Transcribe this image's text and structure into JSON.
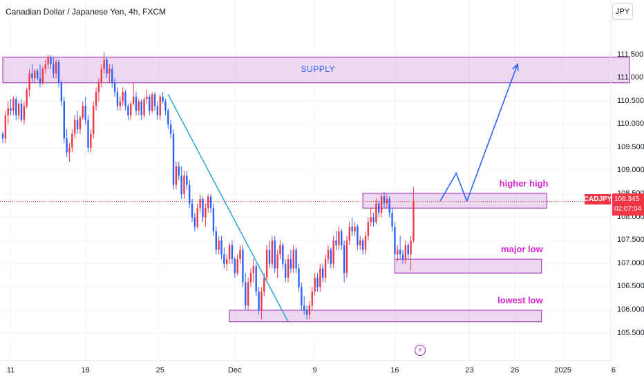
{
  "header": {
    "title": "Canadian Dollar / Japanese Yen, 4h, FXCM",
    "currency_button": "JPY"
  },
  "price_badge": {
    "symbol": "CADJPY",
    "price": "108.345",
    "countdown": "02:07:04"
  },
  "colors": {
    "up": "#f23645",
    "down": "#2962ff",
    "zone_fill": "#e1bee7",
    "zone_border": "#9c27b0",
    "label": "#d62ad0",
    "trend": "#2aa7d8",
    "projection": "#2962ff",
    "current_line": "#f23645"
  },
  "chart_data": {
    "type": "candlestick",
    "title": "Canadian Dollar / Japanese Yen, 4h, FXCM",
    "ylim": [
      105.3,
      111.85
    ],
    "y_ticks": [
      "111.500",
      "111.000",
      "110.500",
      "110.000",
      "109.500",
      "109.000",
      "108.500",
      "108.000",
      "107.500",
      "107.000",
      "106.500",
      "106.000",
      "105.500"
    ],
    "y_tick_values": [
      111.5,
      111.0,
      110.5,
      110.0,
      109.5,
      109.0,
      108.5,
      108.0,
      107.5,
      107.0,
      106.5,
      106.0,
      105.5
    ],
    "x_ticks": [
      "11",
      "18",
      "25",
      "Dec",
      "9",
      "16",
      "23",
      "26",
      "2025",
      "6"
    ],
    "x_tick_bar_index": [
      3,
      31,
      59,
      87,
      117,
      147,
      175,
      192,
      210,
      229
    ],
    "current_price": 108.345,
    "zones": [
      {
        "label": "SUPPLY",
        "bar_from": 0,
        "bar_to": 235,
        "low": 110.9,
        "high": 111.45
      },
      {
        "label": "higher high",
        "bar_from": 135,
        "bar_to": 204,
        "low": 108.2,
        "high": 108.52
      },
      {
        "label": "major low",
        "bar_from": 147,
        "bar_to": 202,
        "low": 106.8,
        "high": 107.1
      },
      {
        "label": "lowest low",
        "bar_from": 85,
        "bar_to": 202,
        "low": 105.75,
        "high": 106.0
      }
    ],
    "trendline": {
      "from": [
        62,
        110.65
      ],
      "to": [
        107,
        105.75
      ]
    },
    "projection": [
      [
        164,
        108.35
      ],
      [
        170,
        108.95
      ],
      [
        174,
        108.35
      ],
      [
        193,
        111.3
      ]
    ],
    "candles": [
      [
        109.8,
        109.85,
        109.6,
        109.7
      ],
      [
        109.7,
        110.3,
        109.6,
        110.2
      ],
      [
        110.2,
        110.5,
        110.0,
        110.35
      ],
      [
        110.35,
        110.55,
        110.2,
        110.3
      ],
      [
        110.3,
        110.6,
        110.2,
        110.55
      ],
      [
        110.55,
        110.6,
        110.1,
        110.2
      ],
      [
        110.2,
        110.5,
        110.1,
        110.45
      ],
      [
        110.45,
        110.55,
        110.05,
        110.1
      ],
      [
        110.1,
        110.5,
        110.0,
        110.4
      ],
      [
        110.4,
        110.8,
        110.35,
        110.75
      ],
      [
        110.75,
        111.2,
        110.6,
        111.1
      ],
      [
        111.1,
        111.3,
        110.9,
        111.0
      ],
      [
        111.0,
        111.2,
        110.9,
        111.15
      ],
      [
        111.15,
        111.2,
        110.95,
        111.0
      ],
      [
        111.0,
        111.3,
        110.8,
        110.9
      ],
      [
        110.9,
        111.25,
        110.85,
        111.2
      ],
      [
        111.2,
        111.4,
        111.1,
        111.3
      ],
      [
        111.3,
        111.5,
        111.2,
        111.45
      ],
      [
        111.45,
        111.5,
        111.2,
        111.3
      ],
      [
        111.3,
        111.45,
        111.0,
        111.1
      ],
      [
        111.1,
        111.4,
        111.0,
        111.35
      ],
      [
        111.35,
        111.4,
        110.8,
        110.9
      ],
      [
        110.9,
        110.95,
        110.4,
        110.5
      ],
      [
        110.5,
        110.6,
        109.6,
        109.7
      ],
      [
        109.7,
        109.9,
        109.3,
        109.4
      ],
      [
        109.4,
        109.6,
        109.2,
        109.5
      ],
      [
        109.5,
        109.9,
        109.4,
        109.8
      ],
      [
        109.8,
        110.2,
        109.7,
        110.1
      ],
      [
        110.1,
        110.3,
        109.8,
        109.9
      ],
      [
        109.9,
        110.2,
        109.8,
        110.15
      ],
      [
        110.15,
        110.5,
        110.1,
        110.4
      ],
      [
        110.4,
        110.6,
        110.0,
        110.1
      ],
      [
        110.1,
        110.2,
        109.4,
        109.5
      ],
      [
        109.5,
        109.9,
        109.4,
        109.8
      ],
      [
        109.8,
        110.5,
        109.7,
        110.4
      ],
      [
        110.4,
        110.8,
        110.3,
        110.7
      ],
      [
        110.7,
        111.0,
        110.5,
        110.9
      ],
      [
        110.9,
        111.3,
        110.8,
        111.2
      ],
      [
        111.2,
        111.55,
        111.1,
        111.4
      ],
      [
        111.4,
        111.45,
        111.0,
        111.1
      ],
      [
        111.1,
        111.3,
        110.9,
        111.2
      ],
      [
        111.2,
        111.3,
        110.8,
        110.9
      ],
      [
        110.9,
        111.0,
        110.6,
        110.7
      ],
      [
        110.7,
        110.8,
        110.3,
        110.4
      ],
      [
        110.4,
        110.6,
        110.3,
        110.5
      ],
      [
        110.5,
        110.8,
        110.4,
        110.7
      ],
      [
        110.7,
        110.75,
        110.3,
        110.4
      ],
      [
        110.4,
        110.45,
        110.1,
        110.2
      ],
      [
        110.2,
        110.5,
        110.1,
        110.45
      ],
      [
        110.45,
        110.9,
        110.4,
        110.6
      ],
      [
        110.6,
        110.7,
        110.2,
        110.3
      ],
      [
        110.3,
        110.55,
        110.2,
        110.5
      ],
      [
        110.5,
        110.55,
        110.1,
        110.2
      ],
      [
        110.2,
        110.6,
        110.15,
        110.55
      ],
      [
        110.55,
        110.75,
        110.45,
        110.6
      ],
      [
        110.6,
        110.65,
        110.2,
        110.3
      ],
      [
        110.3,
        110.7,
        110.25,
        110.65
      ],
      [
        110.65,
        110.7,
        110.3,
        110.4
      ],
      [
        110.4,
        110.5,
        110.1,
        110.2
      ],
      [
        110.2,
        110.65,
        110.1,
        110.6
      ],
      [
        110.6,
        110.7,
        110.45,
        110.5
      ],
      [
        110.5,
        110.55,
        110.2,
        110.3
      ],
      [
        110.3,
        110.35,
        109.9,
        110.0
      ],
      [
        110.0,
        110.1,
        109.7,
        109.8
      ],
      [
        109.8,
        109.9,
        108.6,
        108.7
      ],
      [
        108.7,
        109.2,
        108.6,
        109.1
      ],
      [
        109.1,
        109.2,
        108.8,
        108.9
      ],
      [
        108.9,
        109.1,
        108.4,
        108.5
      ],
      [
        108.5,
        109.0,
        108.4,
        108.9
      ],
      [
        108.9,
        109.0,
        108.6,
        108.7
      ],
      [
        108.7,
        108.8,
        108.2,
        108.3
      ],
      [
        108.3,
        108.4,
        107.9,
        108.0
      ],
      [
        108.0,
        108.1,
        107.7,
        107.8
      ],
      [
        107.8,
        108.3,
        107.75,
        108.2
      ],
      [
        108.2,
        108.5,
        108.1,
        108.4
      ],
      [
        108.4,
        108.45,
        107.9,
        108.0
      ],
      [
        108.0,
        108.3,
        107.8,
        108.2
      ],
      [
        108.2,
        108.5,
        108.1,
        108.45
      ],
      [
        108.45,
        108.5,
        108.1,
        108.2
      ],
      [
        108.2,
        108.3,
        107.6,
        107.7
      ],
      [
        107.7,
        107.8,
        107.2,
        107.3
      ],
      [
        107.3,
        107.6,
        107.2,
        107.5
      ],
      [
        107.5,
        107.6,
        107.1,
        107.2
      ],
      [
        107.2,
        107.35,
        106.9,
        107.0
      ],
      [
        107.0,
        107.2,
        106.85,
        107.1
      ],
      [
        107.1,
        107.45,
        107.0,
        107.4
      ],
      [
        107.4,
        107.5,
        107.0,
        107.1
      ],
      [
        107.1,
        107.15,
        106.7,
        106.8
      ],
      [
        106.8,
        107.2,
        106.75,
        107.1
      ],
      [
        107.1,
        107.4,
        107.0,
        107.3
      ],
      [
        107.3,
        107.4,
        106.5,
        106.6
      ],
      [
        106.6,
        106.8,
        106.0,
        106.1
      ],
      [
        106.1,
        106.7,
        106.0,
        106.6
      ],
      [
        106.6,
        106.9,
        106.5,
        106.8
      ],
      [
        106.8,
        107.1,
        106.6,
        106.95
      ],
      [
        106.95,
        107.0,
        106.3,
        106.4
      ],
      [
        106.4,
        106.5,
        105.9,
        106.0
      ],
      [
        106.0,
        106.5,
        105.8,
        106.4
      ],
      [
        106.4,
        106.8,
        106.3,
        106.7
      ],
      [
        106.7,
        107.4,
        106.6,
        107.3
      ],
      [
        107.3,
        107.5,
        106.9,
        107.0
      ],
      [
        107.0,
        107.6,
        106.9,
        107.5
      ],
      [
        107.5,
        107.6,
        106.8,
        106.9
      ],
      [
        106.9,
        107.3,
        106.7,
        107.2
      ],
      [
        107.2,
        107.5,
        107.1,
        107.4
      ],
      [
        107.4,
        107.45,
        106.9,
        107.0
      ],
      [
        107.0,
        107.1,
        106.6,
        106.7
      ],
      [
        106.7,
        107.2,
        106.6,
        107.1
      ],
      [
        107.1,
        107.3,
        106.8,
        106.9
      ],
      [
        106.9,
        107.4,
        106.8,
        107.3
      ],
      [
        107.3,
        107.35,
        106.8,
        106.9
      ],
      [
        106.9,
        107.0,
        106.4,
        106.5
      ],
      [
        106.5,
        106.6,
        106.0,
        106.1
      ],
      [
        106.1,
        106.3,
        105.9,
        106.0
      ],
      [
        106.0,
        106.1,
        105.8,
        105.9
      ],
      [
        105.9,
        106.2,
        105.8,
        106.1
      ],
      [
        106.1,
        106.5,
        106.0,
        106.4
      ],
      [
        106.4,
        106.8,
        106.3,
        106.7
      ],
      [
        106.7,
        106.8,
        106.4,
        106.5
      ],
      [
        106.5,
        107.0,
        106.4,
        106.9
      ],
      [
        106.9,
        107.0,
        106.6,
        106.7
      ],
      [
        106.7,
        107.2,
        106.6,
        107.1
      ],
      [
        107.1,
        107.4,
        107.0,
        107.3
      ],
      [
        107.3,
        107.35,
        106.9,
        107.0
      ],
      [
        107.0,
        107.6,
        106.9,
        107.5
      ],
      [
        107.5,
        107.7,
        107.3,
        107.4
      ],
      [
        107.4,
        107.8,
        107.3,
        107.7
      ],
      [
        107.7,
        107.75,
        107.3,
        107.4
      ],
      [
        107.4,
        107.5,
        106.6,
        106.8
      ],
      [
        106.8,
        107.6,
        106.7,
        107.5
      ],
      [
        107.5,
        107.9,
        107.4,
        107.8
      ],
      [
        107.8,
        108.0,
        107.6,
        107.7
      ],
      [
        107.7,
        107.9,
        107.6,
        107.8
      ],
      [
        107.8,
        107.85,
        107.3,
        107.4
      ],
      [
        107.4,
        107.6,
        107.3,
        107.5
      ],
      [
        107.5,
        107.55,
        107.2,
        107.3
      ],
      [
        107.3,
        107.7,
        107.2,
        107.6
      ],
      [
        107.6,
        108.0,
        107.5,
        107.9
      ],
      [
        107.9,
        108.2,
        107.8,
        108.0
      ],
      [
        108.0,
        108.1,
        107.8,
        107.9
      ],
      [
        107.9,
        108.4,
        107.85,
        108.3
      ],
      [
        108.3,
        108.35,
        108.0,
        108.1
      ],
      [
        108.1,
        108.5,
        108.0,
        108.45
      ],
      [
        108.45,
        108.55,
        108.2,
        108.3
      ],
      [
        108.3,
        108.5,
        108.2,
        108.4
      ],
      [
        108.4,
        108.45,
        108.0,
        108.1
      ],
      [
        108.1,
        108.2,
        107.7,
        107.8
      ],
      [
        107.8,
        107.9,
        107.1,
        107.2
      ],
      [
        107.2,
        107.4,
        107.05,
        107.3
      ],
      [
        107.3,
        107.6,
        107.1,
        107.2
      ],
      [
        107.2,
        107.3,
        107.0,
        107.1
      ],
      [
        107.1,
        107.5,
        107.0,
        107.4
      ],
      [
        107.4,
        107.45,
        107.1,
        107.2
      ],
      [
        107.2,
        107.6,
        106.85,
        107.5
      ],
      [
        107.5,
        108.65,
        107.45,
        108.345
      ]
    ]
  }
}
